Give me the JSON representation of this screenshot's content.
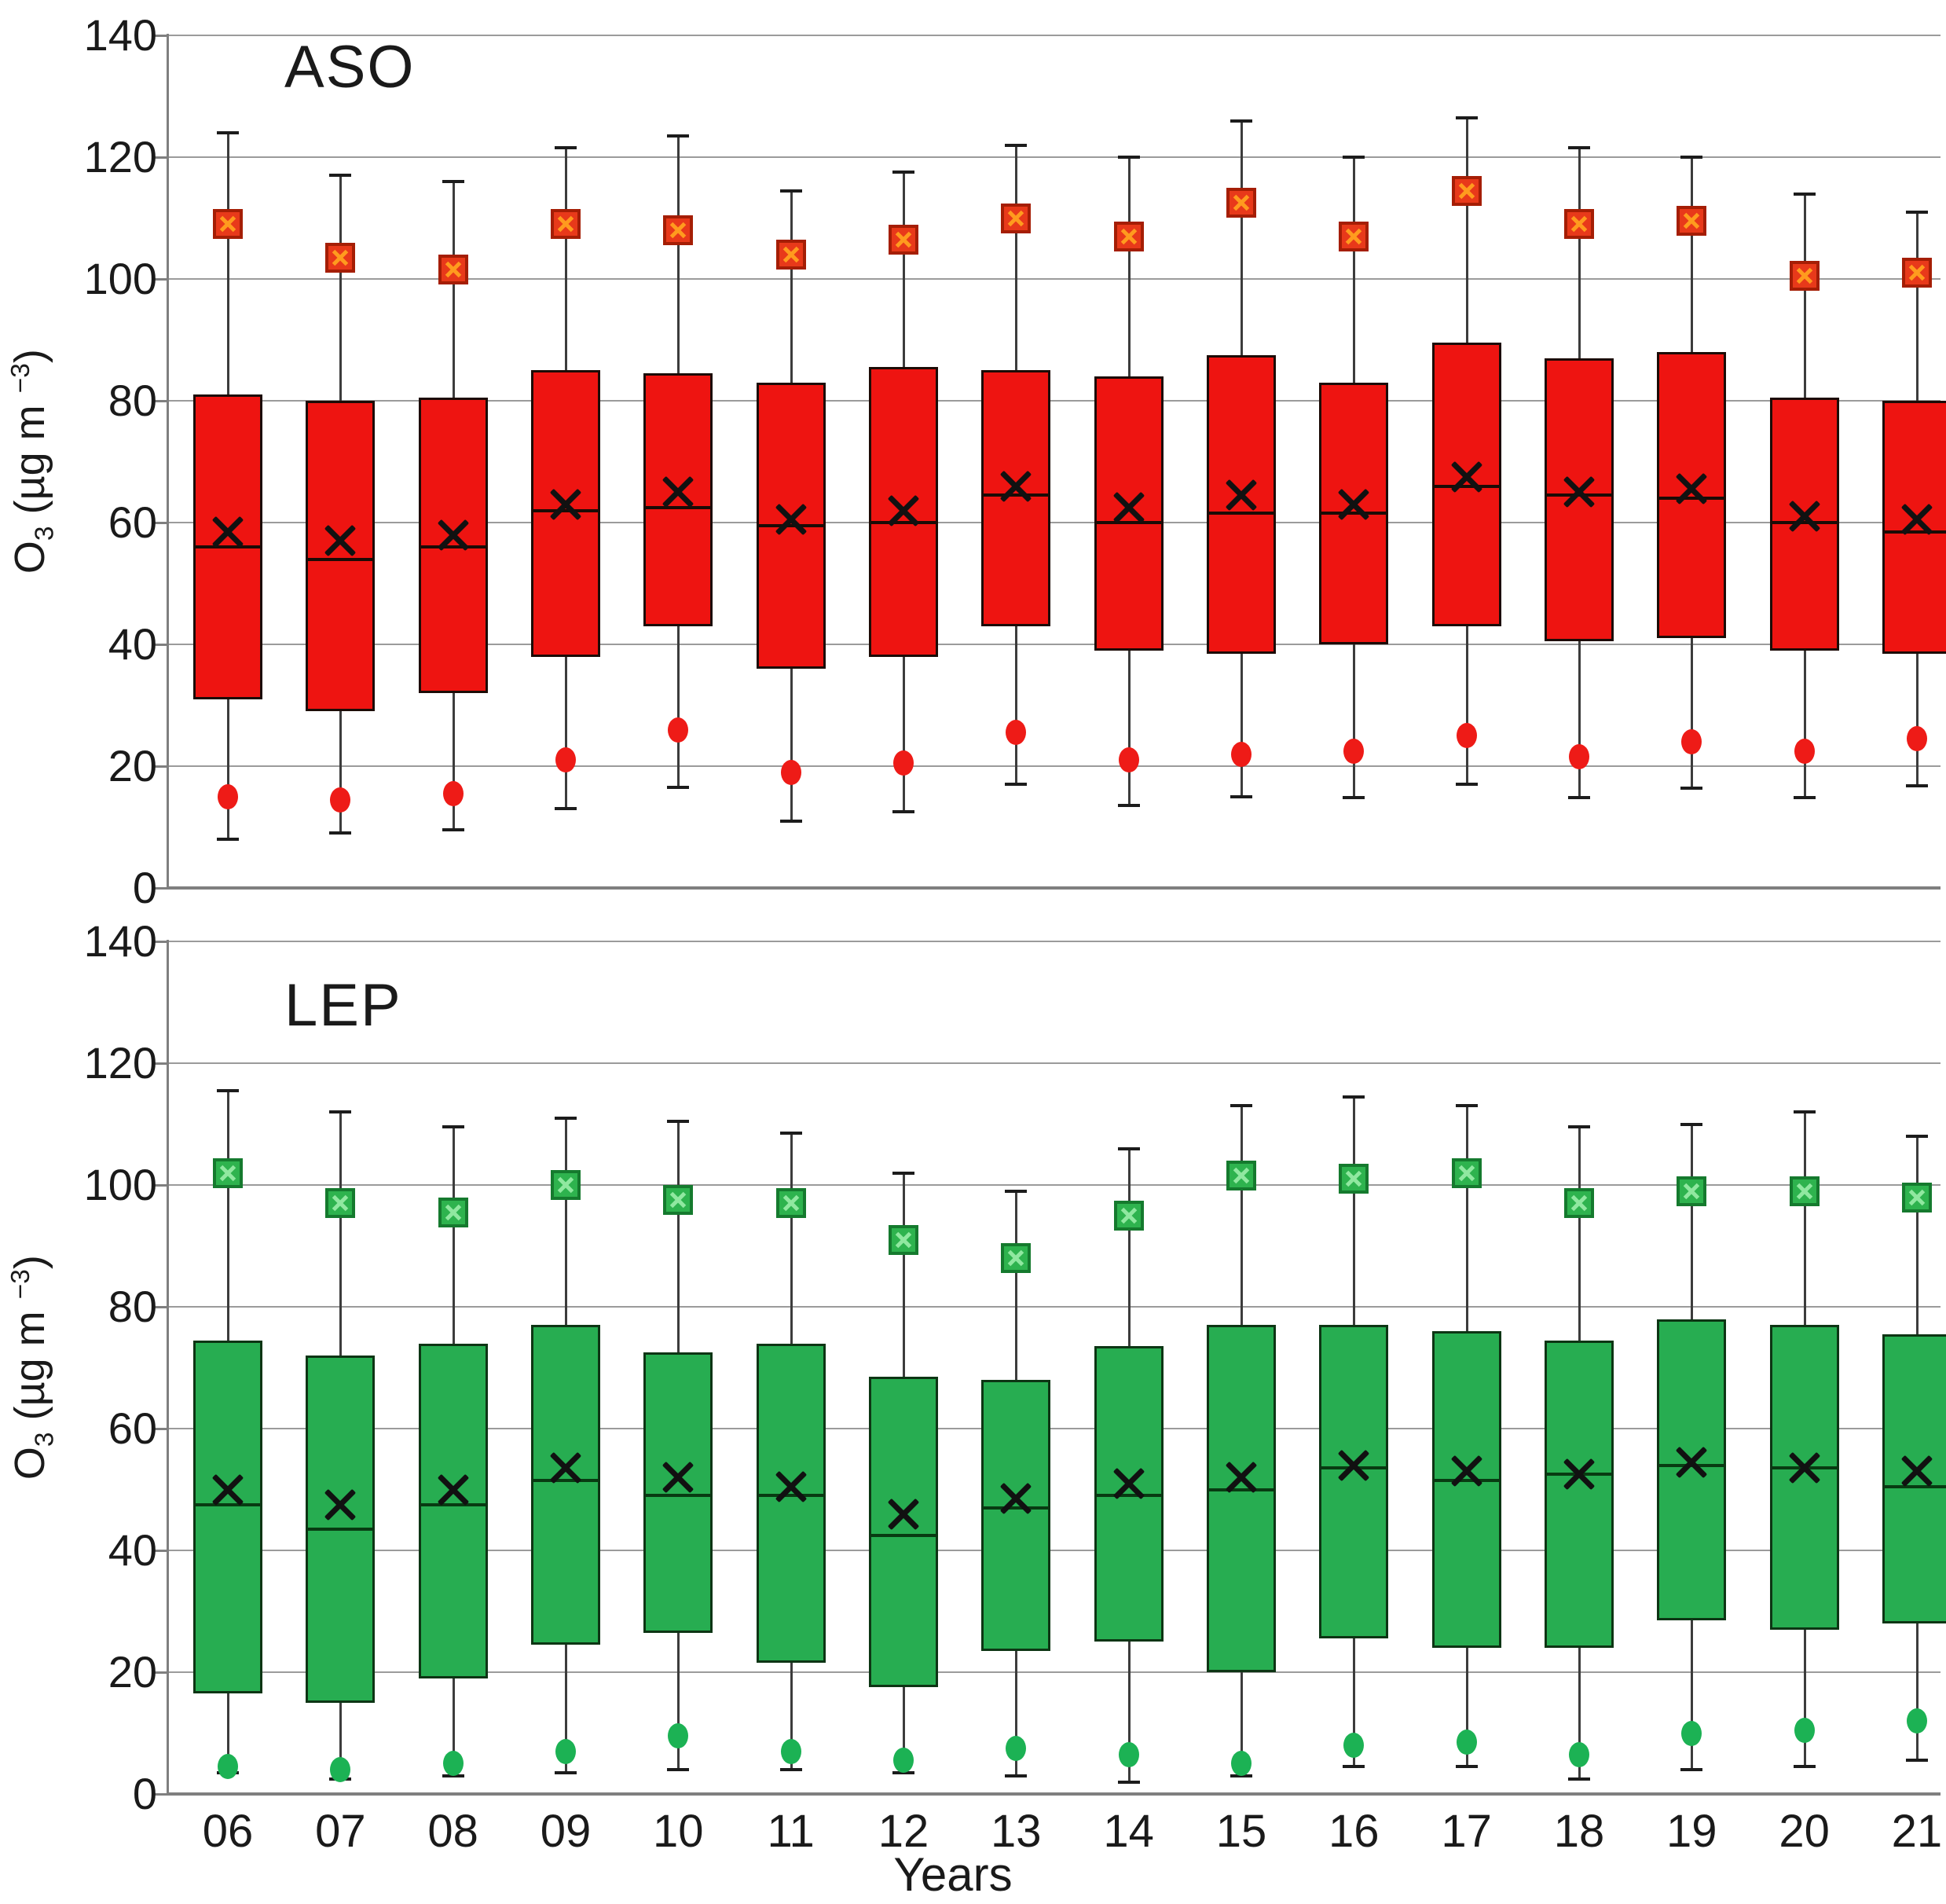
{
  "page": {
    "background": "#ffffff"
  },
  "colors": {
    "gridline": "#9b9b9b",
    "axis": "#7f7f7f",
    "text": "#1a1a1a",
    "whisker": "#3c3c3c",
    "mean_x": "#111111"
  },
  "chart_data": [
    {
      "type": "box",
      "panel": "top",
      "title": "ASO",
      "ylabel_parts": {
        "pre": "O",
        "sub": "3",
        "mid": " (µg m ",
        "sup": "−3",
        "post": ")"
      },
      "xlabel": "",
      "categories": [
        "06",
        "07",
        "08",
        "09",
        "10",
        "11",
        "12",
        "13",
        "14",
        "15",
        "16",
        "17",
        "18",
        "19",
        "20",
        "21"
      ],
      "ylim": [
        0,
        140
      ],
      "yticks": [
        0,
        20,
        40,
        60,
        80,
        100,
        120,
        140
      ],
      "grid": true,
      "legend": false,
      "colors": {
        "box_fill": "#ee1411",
        "box_border": "#1c0b06",
        "median": "#1b0b06",
        "square_fill": "#e8391a",
        "square_border": "#a51e05",
        "square_cross": "#ff9b1e",
        "circle_fill": "#ee1b17"
      },
      "stats": {
        "whisker_high": [
          124,
          117,
          116,
          121.5,
          123.5,
          114.5,
          117.5,
          122,
          120,
          126,
          120,
          126.5,
          121.5,
          120,
          114,
          111
        ],
        "square": [
          109,
          103.5,
          101.5,
          109,
          108,
          104,
          106.5,
          110,
          107,
          112.5,
          107,
          114.5,
          109,
          109.5,
          100.5,
          101
        ],
        "q3": [
          81,
          80,
          80.5,
          85,
          84.5,
          83,
          85.5,
          85,
          84,
          87.5,
          83,
          89.5,
          87,
          88,
          80.5,
          80
        ],
        "mean": [
          58.5,
          57,
          58,
          63,
          65,
          60.5,
          62,
          66,
          62.5,
          64.5,
          63,
          67.5,
          65,
          65.5,
          61,
          60.5
        ],
        "median": [
          56,
          54,
          56,
          62,
          62.5,
          59.5,
          60,
          64.5,
          60,
          61.5,
          61.5,
          66,
          64.5,
          64,
          60,
          58.5
        ],
        "q1": [
          31,
          29,
          32,
          38,
          43,
          36,
          38,
          43,
          39,
          38.5,
          40,
          43,
          40.5,
          41,
          39,
          38.5
        ],
        "circle": [
          15,
          14.5,
          15.5,
          21,
          26,
          19,
          20.5,
          25.5,
          21,
          22,
          22.5,
          25,
          21.5,
          24,
          22.5,
          24.5
        ],
        "whisker_low": [
          8,
          9,
          9.5,
          13,
          16.5,
          11,
          12.5,
          17,
          13.5,
          15,
          14.8,
          17,
          14.8,
          16.4,
          14.8,
          16.8
        ]
      }
    },
    {
      "type": "box",
      "panel": "bottom",
      "title": "LEP",
      "ylabel_parts": {
        "pre": "O",
        "sub": "3",
        "mid": " (µg m ",
        "sup": "−3",
        "post": ")"
      },
      "xlabel": "Years",
      "categories": [
        "06",
        "07",
        "08",
        "09",
        "10",
        "11",
        "12",
        "13",
        "14",
        "15",
        "16",
        "17",
        "18",
        "19",
        "20",
        "21"
      ],
      "ylim": [
        0,
        140
      ],
      "yticks": [
        0,
        20,
        40,
        60,
        80,
        100,
        120,
        140
      ],
      "grid": true,
      "legend": false,
      "colors": {
        "box_fill": "#27ad51",
        "box_border": "#0d3514",
        "median": "#083b12",
        "square_fill": "#2eb34e",
        "square_border": "#157a2e",
        "square_cross": "#90e8a0",
        "circle_fill": "#1cb254"
      },
      "stats": {
        "whisker_high": [
          115.5,
          112,
          109.5,
          111,
          110.5,
          108.5,
          102,
          99,
          106,
          113,
          114.5,
          113,
          109.5,
          110,
          112,
          108
        ],
        "square": [
          102,
          97,
          95.5,
          100,
          97.5,
          97,
          91,
          88,
          95,
          101.5,
          101,
          102,
          97,
          99,
          99,
          98
        ],
        "q3": [
          74.5,
          72,
          74,
          77,
          72.5,
          74,
          68.5,
          68,
          73.5,
          77,
          77,
          76,
          74.5,
          78,
          77,
          75.5
        ],
        "mean": [
          50,
          47.5,
          50,
          53.5,
          52,
          50.5,
          46,
          48.5,
          51,
          52,
          54,
          53,
          52.5,
          54.5,
          53.5,
          53
        ],
        "median": [
          47.5,
          43.5,
          47.5,
          51.5,
          49,
          49,
          42.5,
          47,
          49,
          50,
          53.5,
          51.5,
          52.5,
          54,
          53.5,
          50.5
        ],
        "q1": [
          16.5,
          15,
          19,
          24.5,
          26.5,
          21.5,
          17.5,
          23.5,
          25,
          20,
          25.5,
          24,
          24,
          28.5,
          27,
          28
        ],
        "circle": [
          4.5,
          4,
          5,
          7,
          9.5,
          7,
          5.5,
          7.5,
          6.5,
          5,
          8,
          8.5,
          6.5,
          10,
          10.5,
          12
        ],
        "whisker_low": [
          3.5,
          2.5,
          3,
          3.5,
          4,
          4,
          3.5,
          3,
          2,
          3,
          4.5,
          4.5,
          2.5,
          4,
          4.5,
          5.5
        ]
      }
    }
  ]
}
